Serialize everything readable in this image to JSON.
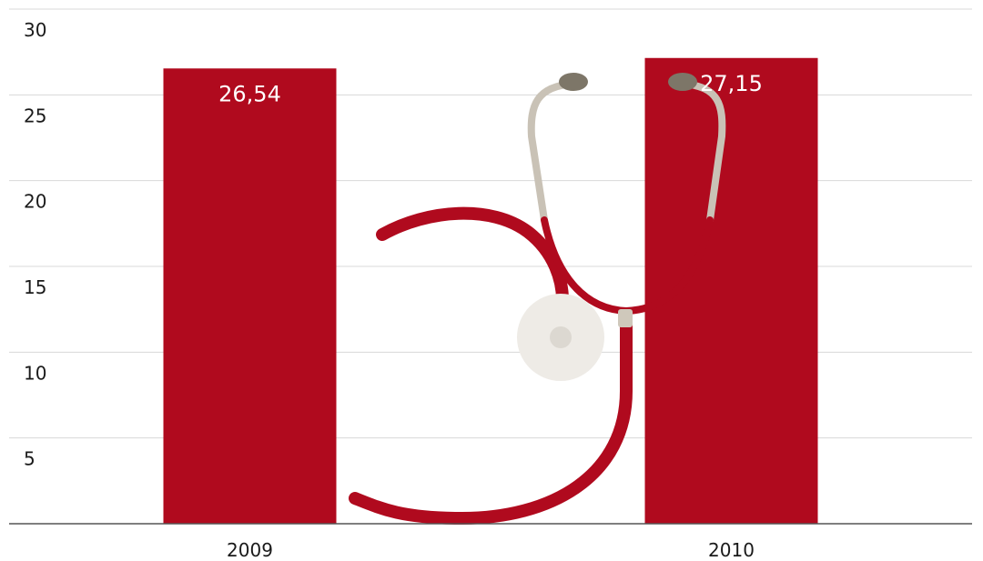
{
  "chart_data": {
    "type": "bar",
    "categories": [
      "2009",
      "2010"
    ],
    "values": [
      26.54,
      27.15
    ],
    "value_labels": [
      "26,54",
      "27,15"
    ],
    "title": "",
    "xlabel": "",
    "ylabel": "",
    "ylim": [
      0,
      30
    ],
    "yticks": [
      5,
      10,
      15,
      20,
      25,
      30
    ],
    "grid": true,
    "legend": "none",
    "bar_color": "#b00a1e",
    "decoration": "stethoscope-illustration"
  },
  "colors": {
    "bar": "#b00a1e",
    "tube_red": "#b00a1e",
    "tube_grey": "#c9c2b6",
    "earpiece": "#7d7668",
    "chestpiece": "#eeebe6"
  }
}
